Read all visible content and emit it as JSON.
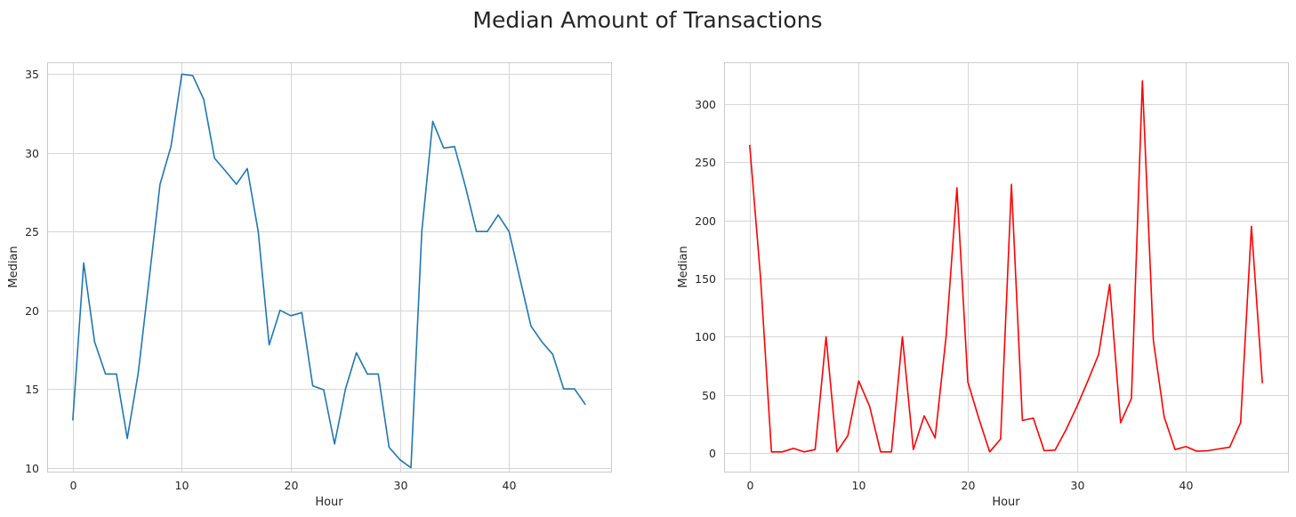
{
  "figure": {
    "title": "Median Amount of Transactions"
  },
  "chart_data": [
    {
      "type": "line",
      "xlabel": "Hour",
      "ylabel": "Median",
      "xlim": [
        -2.35,
        49.35
      ],
      "ylim": [
        9.75,
        35.75
      ],
      "xticks": [
        0,
        10,
        20,
        30,
        40
      ],
      "yticks": [
        10,
        15,
        20,
        25,
        30,
        35
      ],
      "grid": true,
      "color": "#1f77b4",
      "series": [
        {
          "x": [
            0,
            1,
            2,
            3,
            4,
            5,
            6,
            7,
            8,
            9,
            10,
            11,
            12,
            13,
            14,
            15,
            16,
            17,
            18,
            19,
            20,
            21,
            22,
            23,
            24,
            25,
            26,
            27,
            28,
            29,
            30,
            31,
            32,
            33,
            34,
            35,
            36,
            37,
            38,
            39,
            40,
            41,
            42,
            43,
            44,
            45,
            46,
            47
          ],
          "values": [
            13.0,
            23.0,
            18.0,
            15.95,
            15.95,
            11.85,
            16.0,
            22.0,
            28.0,
            30.4,
            35.0,
            34.9,
            33.4,
            29.65,
            28.85,
            28.0,
            29.0,
            25.0,
            17.8,
            20.0,
            19.65,
            19.85,
            15.2,
            14.95,
            11.5,
            15.0,
            17.3,
            15.95,
            15.95,
            11.3,
            10.5,
            10.0,
            25.0,
            32.0,
            30.3,
            30.4,
            27.85,
            25.0,
            25.0,
            26.05,
            25.0,
            22.0,
            19.0,
            18.0,
            17.2,
            15.0,
            15.0,
            14.0
          ]
        }
      ]
    },
    {
      "type": "line",
      "xlabel": "Hour",
      "ylabel": "Median",
      "xlim": [
        -2.35,
        49.35
      ],
      "ylim": [
        -16,
        336
      ],
      "xticks": [
        0,
        10,
        20,
        30,
        40
      ],
      "yticks": [
        0,
        50,
        100,
        150,
        200,
        250,
        300
      ],
      "grid": true,
      "color": "#ff0000",
      "series": [
        {
          "x": [
            0,
            1,
            2,
            3,
            4,
            5,
            6,
            7,
            8,
            9,
            10,
            11,
            12,
            13,
            14,
            15,
            16,
            17,
            18,
            19,
            20,
            21,
            22,
            23,
            24,
            25,
            26,
            27,
            28,
            29,
            30,
            31,
            32,
            33,
            34,
            35,
            36,
            37,
            38,
            39,
            40,
            41,
            42,
            43,
            44,
            45,
            46,
            47
          ],
          "values": [
            265,
            150,
            1,
            1,
            4,
            1,
            3,
            100,
            1,
            15,
            62,
            40,
            1,
            1,
            100,
            3,
            32,
            13,
            100,
            228,
            61,
            30,
            1,
            12,
            231,
            28,
            30,
            2,
            2.5,
            20,
            40,
            62,
            85,
            145,
            26,
            47,
            320,
            97,
            31,
            3,
            5.5,
            1.5,
            2,
            3.5,
            5,
            26,
            195,
            60
          ]
        }
      ]
    }
  ]
}
